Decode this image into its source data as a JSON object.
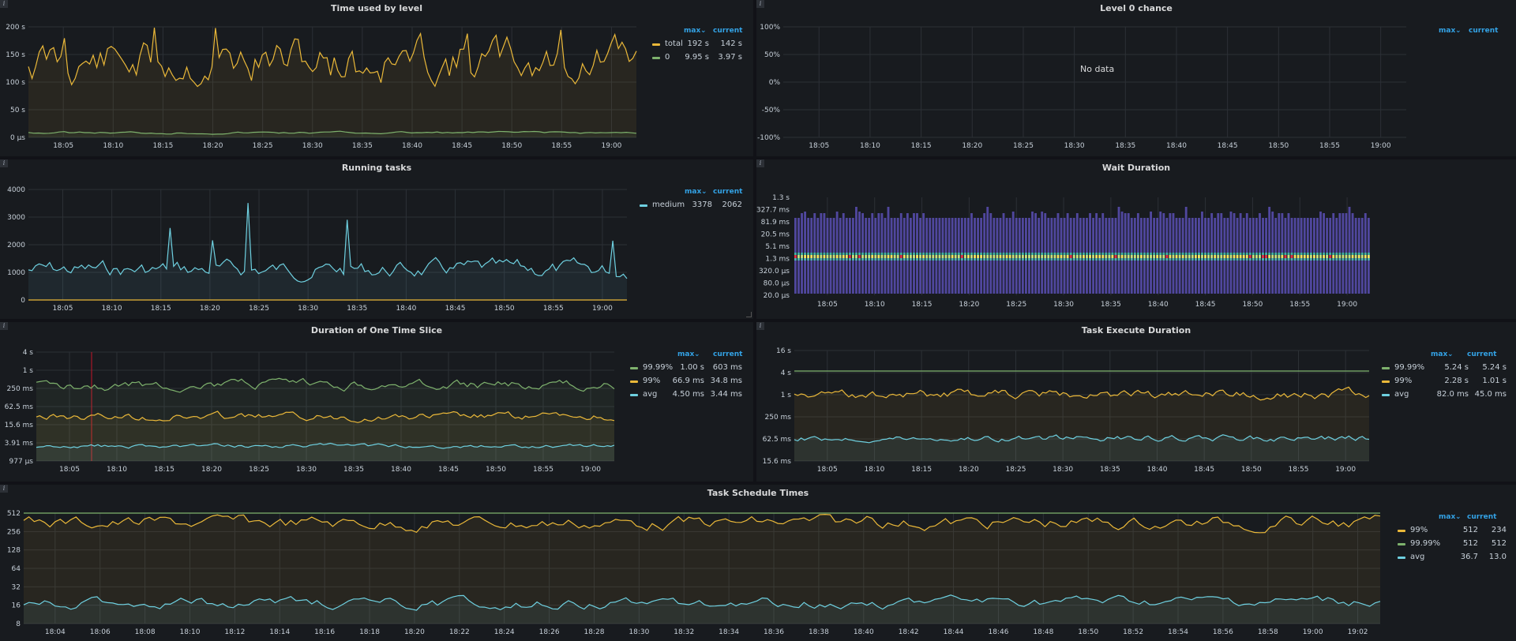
{
  "colors": {
    "yellow": "#eab839",
    "green": "#7eb26d",
    "cyan": "#6ed0e0",
    "accent": "#33a2e5",
    "grid": "#2c3036"
  },
  "icons": {
    "info": "info-icon",
    "sort": "chevron-down-icon"
  },
  "panels": {
    "time_used": {
      "title": "Time used by level",
      "legend": {
        "max": "max",
        "current": "current",
        "items": [
          {
            "name": "total",
            "max": "192 s",
            "current": "142 s"
          },
          {
            "name": "0",
            "max": "9.95 s",
            "current": "3.97 s"
          }
        ]
      },
      "chart_data": {
        "type": "line",
        "y_ticks": [
          "200 s",
          "150 s",
          "100 s",
          "50 s",
          "0 µs"
        ],
        "x_ticks": [
          "18:05",
          "18:10",
          "18:15",
          "18:20",
          "18:25",
          "18:30",
          "18:35",
          "18:40",
          "18:45",
          "18:50",
          "18:55",
          "19:00"
        ],
        "ylim": [
          0,
          200
        ]
      }
    },
    "level0": {
      "title": "Level 0 chance",
      "no_data": "No data",
      "legend": {
        "max": "max",
        "current": "current"
      },
      "chart_data": {
        "type": "line",
        "y_ticks": [
          "100%",
          "50%",
          "0%",
          "-50%",
          "-100%"
        ],
        "x_ticks": [
          "18:05",
          "18:10",
          "18:15",
          "18:20",
          "18:25",
          "18:30",
          "18:35",
          "18:40",
          "18:45",
          "18:50",
          "18:55",
          "19:00"
        ]
      }
    },
    "running": {
      "title": "Running tasks",
      "legend": {
        "max": "max",
        "current": "current",
        "items": [
          {
            "name": "medium",
            "max": "3378",
            "current": "2062"
          }
        ]
      },
      "chart_data": {
        "type": "line",
        "y_ticks": [
          "4000",
          "3000",
          "2000",
          "1000",
          "0"
        ],
        "x_ticks": [
          "18:05",
          "18:10",
          "18:15",
          "18:20",
          "18:25",
          "18:30",
          "18:35",
          "18:40",
          "18:45",
          "18:50",
          "18:55",
          "19:00"
        ],
        "ylim": [
          0,
          4000
        ]
      }
    },
    "wait": {
      "title": "Wait Duration",
      "chart_data": {
        "type": "heatmap",
        "y_ticks": [
          "1.3 s",
          "327.7 ms",
          "81.9 ms",
          "20.5 ms",
          "5.1 ms",
          "1.3 ms",
          "320.0 µs",
          "80.0 µs",
          "20.0 µs"
        ],
        "x_ticks": [
          "18:05",
          "18:10",
          "18:15",
          "18:20",
          "18:25",
          "18:30",
          "18:35",
          "18:40",
          "18:45",
          "18:50",
          "18:55",
          "19:00"
        ]
      }
    },
    "slice": {
      "title": "Duration of One Time Slice",
      "legend": {
        "max": "max",
        "current": "current",
        "items": [
          {
            "name": "99.99%",
            "max": "1.00 s",
            "current": "603 ms"
          },
          {
            "name": "99%",
            "max": "66.9 ms",
            "current": "34.8 ms"
          },
          {
            "name": "avg",
            "max": "4.50 ms",
            "current": "3.44 ms"
          }
        ]
      },
      "chart_data": {
        "type": "line",
        "y_ticks": [
          "4 s",
          "1 s",
          "250 ms",
          "62.5 ms",
          "15.6 ms",
          "3.91 ms",
          "977 µs"
        ],
        "x_ticks": [
          "18:05",
          "18:10",
          "18:15",
          "18:20",
          "18:25",
          "18:30",
          "18:35",
          "18:40",
          "18:45",
          "18:50",
          "18:55",
          "19:00"
        ]
      }
    },
    "exec": {
      "title": "Task Execute Duration",
      "legend": {
        "max": "max",
        "current": "current",
        "items": [
          {
            "name": "99.99%",
            "max": "5.24 s",
            "current": "5.24 s"
          },
          {
            "name": "99%",
            "max": "2.28 s",
            "current": "1.01 s"
          },
          {
            "name": "avg",
            "max": "82.0 ms",
            "current": "45.0 ms"
          }
        ]
      },
      "chart_data": {
        "type": "line",
        "y_ticks": [
          "16 s",
          "4 s",
          "1 s",
          "250 ms",
          "62.5 ms",
          "15.6 ms"
        ],
        "x_ticks": [
          "18:05",
          "18:10",
          "18:15",
          "18:20",
          "18:25",
          "18:30",
          "18:35",
          "18:40",
          "18:45",
          "18:50",
          "18:55",
          "19:00"
        ]
      }
    },
    "schedule": {
      "title": "Task Schedule Times",
      "legend": {
        "max": "max",
        "current": "current",
        "items": [
          {
            "name": "99%",
            "max": "512",
            "current": "234"
          },
          {
            "name": "99.99%",
            "max": "512",
            "current": "512"
          },
          {
            "name": "avg",
            "max": "36.7",
            "current": "13.0"
          }
        ]
      },
      "chart_data": {
        "type": "line",
        "y_ticks": [
          "512",
          "256",
          "128",
          "64",
          "32",
          "16",
          "8"
        ],
        "x_ticks": [
          "18:04",
          "18:06",
          "18:08",
          "18:10",
          "18:12",
          "18:14",
          "18:16",
          "18:18",
          "18:20",
          "18:22",
          "18:24",
          "18:26",
          "18:28",
          "18:30",
          "18:32",
          "18:34",
          "18:36",
          "18:38",
          "18:40",
          "18:42",
          "18:44",
          "18:46",
          "18:48",
          "18:50",
          "18:52",
          "18:54",
          "18:56",
          "18:58",
          "19:00",
          "19:02"
        ]
      }
    }
  }
}
